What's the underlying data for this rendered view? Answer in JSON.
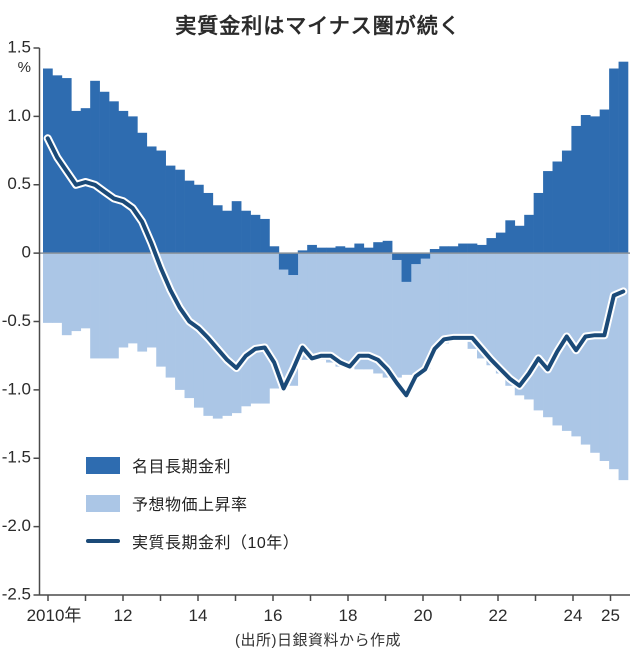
{
  "page": {
    "title": "実質金利はマイナス圏が続く",
    "source": "(出所)日銀資料から作成"
  },
  "chart_data": {
    "type": "bar",
    "subtype": "stacked-diverging-bars-with-line",
    "title": "実質金利はマイナス圏が続く",
    "source": "(出所)日銀資料から作成",
    "x_axis": {
      "periods": "quarterly",
      "start": "2010Q1",
      "end": "2025Q2",
      "tick_years": [
        2010,
        2011,
        2012,
        2013,
        2014,
        2015,
        2016,
        2017,
        2018,
        2019,
        2020,
        2021,
        2022,
        2023,
        2024,
        2025
      ],
      "tick_labels": [
        {
          "year": 2010,
          "label": "2010年"
        },
        {
          "year": 2012,
          "label": "12"
        },
        {
          "year": 2014,
          "label": "14"
        },
        {
          "year": 2016,
          "label": "16"
        },
        {
          "year": 2018,
          "label": "18"
        },
        {
          "year": 2020,
          "label": "20"
        },
        {
          "year": 2022,
          "label": "22"
        },
        {
          "year": 2024,
          "label": "24"
        },
        {
          "year": 2025,
          "label": "25"
        }
      ]
    },
    "y_axis": {
      "min": -2.5,
      "max": 1.5,
      "step": 0.5,
      "unit": "%",
      "tick_labels": [
        "1.5",
        "1.0",
        "0.5",
        "0",
        "-0.5",
        "-1.0",
        "-1.5",
        "-2.0",
        "-2.5"
      ],
      "grid": false
    },
    "legend_position": "inside-bottom-left",
    "series": [
      {
        "key": "nominal",
        "name": "名目長期金利",
        "type": "bar",
        "color": "#2e6cb0",
        "values": [
          1.35,
          1.3,
          1.28,
          1.04,
          1.06,
          1.26,
          1.18,
          1.11,
          1.04,
          1.0,
          0.88,
          0.78,
          0.75,
          0.64,
          0.61,
          0.53,
          0.5,
          0.44,
          0.35,
          0.31,
          0.38,
          0.31,
          0.28,
          0.25,
          0.05,
          -0.12,
          -0.16,
          0.02,
          0.06,
          0.04,
          0.04,
          0.05,
          0.04,
          0.07,
          0.04,
          0.08,
          0.09,
          -0.05,
          -0.21,
          -0.08,
          -0.04,
          0.03,
          0.05,
          0.05,
          0.07,
          0.07,
          0.06,
          0.11,
          0.15,
          0.24,
          0.2,
          0.28,
          0.44,
          0.6,
          0.67,
          0.75,
          0.93,
          1.01,
          1.0,
          1.05,
          1.35,
          1.4
        ]
      },
      {
        "key": "expected_inflation",
        "name": "予想物価上昇率",
        "type": "bar",
        "color": "#abc6e6",
        "values": [
          -0.51,
          -0.51,
          -0.6,
          -0.57,
          -0.55,
          -0.77,
          -0.77,
          -0.77,
          -0.69,
          -0.66,
          -0.72,
          -0.69,
          -0.83,
          -0.91,
          -1.0,
          -1.06,
          -1.13,
          -1.19,
          -1.21,
          -1.19,
          -1.17,
          -1.12,
          -1.1,
          -1.1,
          -0.99,
          -0.97,
          -0.97,
          -0.78,
          -0.78,
          -0.78,
          -0.8,
          -0.83,
          -0.83,
          -0.85,
          -0.85,
          -0.88,
          -0.91,
          -0.91,
          -0.89,
          -0.89,
          -0.85,
          -0.7,
          -0.66,
          -0.64,
          -0.64,
          -0.7,
          -0.77,
          -0.82,
          -0.88,
          -0.97,
          -1.04,
          -1.07,
          -1.15,
          -1.2,
          -1.26,
          -1.3,
          -1.34,
          -1.4,
          -1.46,
          -1.52,
          -1.58,
          -1.66
        ]
      },
      {
        "key": "real_rate",
        "name": "実質長期金利（10年）",
        "type": "line",
        "color": "#1b4a78",
        "halo_color": "#ffffff",
        "values": [
          0.84,
          0.7,
          0.6,
          0.5,
          0.52,
          0.5,
          0.45,
          0.4,
          0.38,
          0.33,
          0.23,
          0.07,
          -0.11,
          -0.27,
          -0.4,
          -0.5,
          -0.55,
          -0.62,
          -0.7,
          -0.78,
          -0.84,
          -0.75,
          -0.7,
          -0.69,
          -0.8,
          -0.99,
          -0.85,
          -0.69,
          -0.77,
          -0.75,
          -0.75,
          -0.8,
          -0.83,
          -0.75,
          -0.75,
          -0.78,
          -0.85,
          -0.95,
          -1.04,
          -0.9,
          -0.85,
          -0.7,
          -0.63,
          -0.62,
          -0.62,
          -0.62,
          -0.7,
          -0.78,
          -0.85,
          -0.92,
          -0.97,
          -0.88,
          -0.77,
          -0.85,
          -0.72,
          -0.61,
          -0.71,
          -0.61,
          -0.6,
          -0.6,
          -0.31,
          -0.28
        ]
      }
    ],
    "colors": {
      "zero_line": "#8a939c",
      "axis": "#4a4a4a",
      "text": "#2b2b2b"
    }
  }
}
